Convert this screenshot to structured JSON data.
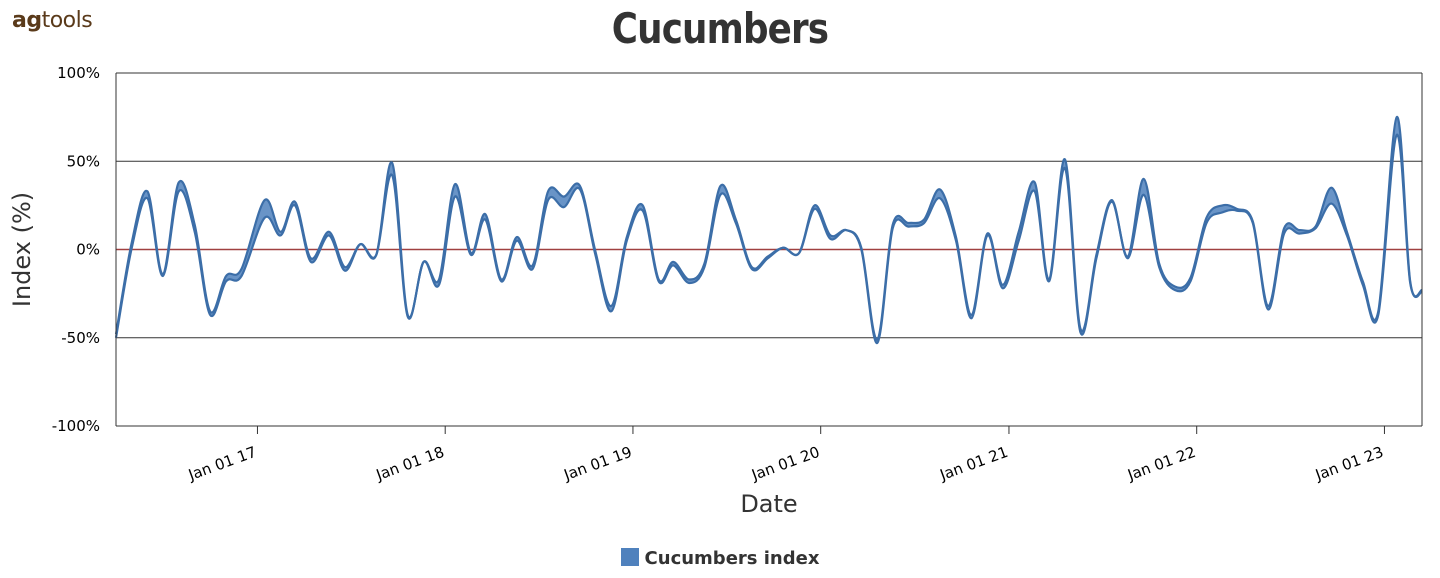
{
  "logo": {
    "prefix": "ag",
    "suffix": "tools"
  },
  "colors": {
    "series": "#4f81bd",
    "series_dark": "#3c6ea8",
    "zero_line": "#a04040",
    "grid": "#333333"
  },
  "chart_data": {
    "type": "area",
    "title": "Cucumbers",
    "xlabel": "Date",
    "ylabel": "Index (%)",
    "ylim": [
      -100,
      100
    ],
    "yticks": [
      100,
      50,
      0,
      -50,
      -100
    ],
    "ytick_labels": [
      "100%",
      "50%",
      "0%",
      "-50%",
      "-100%"
    ],
    "xlim": [
      "2016-04-01",
      "2023-03-15"
    ],
    "xticks": [
      "2017-01-01",
      "2018-01-01",
      "2019-01-01",
      "2020-01-01",
      "2021-01-01",
      "2022-01-01",
      "2023-01-01"
    ],
    "xtick_labels": [
      "Jan 01 17",
      "Jan 01 18",
      "Jan 01 19",
      "Jan 01 20",
      "Jan 01 21",
      "Jan 01 22",
      "Jan 01 23"
    ],
    "grid": true,
    "legend": "bottom-center",
    "series": [
      {
        "name": "Cucumbers index",
        "points": [
          [
            "2016-04-01",
            -50,
            -48
          ],
          [
            "2016-05-01",
            0,
            3
          ],
          [
            "2016-06-01",
            29,
            33
          ],
          [
            "2016-07-01",
            -15,
            -14
          ],
          [
            "2016-08-01",
            33,
            38
          ],
          [
            "2016-09-01",
            10,
            14
          ],
          [
            "2016-10-01",
            -37,
            -35
          ],
          [
            "2016-11-01",
            -18,
            -15
          ],
          [
            "2016-12-01",
            -15,
            -11
          ],
          [
            "2017-01-15",
            18,
            28
          ],
          [
            "2017-02-15",
            8,
            10
          ],
          [
            "2017-03-15",
            25,
            27
          ],
          [
            "2017-04-15",
            -7,
            -5
          ],
          [
            "2017-05-20",
            8,
            10
          ],
          [
            "2017-06-20",
            -12,
            -10
          ],
          [
            "2017-07-20",
            3,
            3
          ],
          [
            "2017-08-20",
            -3,
            -3
          ],
          [
            "2017-09-20",
            42,
            49
          ],
          [
            "2017-10-20",
            -38,
            -37
          ],
          [
            "2017-11-20",
            -7,
            -7
          ],
          [
            "2017-12-20",
            -20,
            -17
          ],
          [
            "2018-01-20",
            30,
            37
          ],
          [
            "2018-02-20",
            -3,
            -2
          ],
          [
            "2018-03-20",
            17,
            20
          ],
          [
            "2018-04-20",
            -18,
            -17
          ],
          [
            "2018-05-20",
            5,
            7
          ],
          [
            "2018-06-20",
            -11,
            -9
          ],
          [
            "2018-07-20",
            28,
            33
          ],
          [
            "2018-08-20",
            24,
            30
          ],
          [
            "2018-09-20",
            34,
            36
          ],
          [
            "2018-10-20",
            -3,
            -1
          ],
          [
            "2018-11-20",
            -35,
            -32
          ],
          [
            "2018-12-20",
            5,
            7
          ],
          [
            "2019-01-20",
            22,
            25
          ],
          [
            "2019-02-20",
            -18,
            -17
          ],
          [
            "2019-03-20",
            -9,
            -7
          ],
          [
            "2019-04-20",
            -19,
            -17
          ],
          [
            "2019-05-20",
            -10,
            -8
          ],
          [
            "2019-06-20",
            31,
            36
          ],
          [
            "2019-07-20",
            15,
            17
          ],
          [
            "2019-08-20",
            -11,
            -10
          ],
          [
            "2019-09-20",
            -5,
            -4
          ],
          [
            "2019-10-20",
            1,
            1
          ],
          [
            "2019-11-20",
            -2,
            -2
          ],
          [
            "2019-12-20",
            23,
            25
          ],
          [
            "2020-01-20",
            6,
            8
          ],
          [
            "2020-02-20",
            11,
            11
          ],
          [
            "2020-03-20",
            0,
            1
          ],
          [
            "2020-04-20",
            -53,
            -51
          ],
          [
            "2020-05-20",
            12,
            14
          ],
          [
            "2020-06-20",
            13,
            15
          ],
          [
            "2020-07-20",
            15,
            17
          ],
          [
            "2020-08-20",
            29,
            34
          ],
          [
            "2020-09-20",
            5,
            7
          ],
          [
            "2020-10-20",
            -39,
            -37
          ],
          [
            "2020-11-20",
            8,
            9
          ],
          [
            "2020-12-20",
            -22,
            -20
          ],
          [
            "2021-01-20",
            5,
            10
          ],
          [
            "2021-02-20",
            33,
            38
          ],
          [
            "2021-03-20",
            -18,
            -17
          ],
          [
            "2021-04-20",
            46,
            51
          ],
          [
            "2021-05-20",
            -47,
            -45
          ],
          [
            "2021-06-20",
            -5,
            -3
          ],
          [
            "2021-07-20",
            27,
            28
          ],
          [
            "2021-08-20",
            -5,
            -4
          ],
          [
            "2021-09-20",
            31,
            40
          ],
          [
            "2021-10-20",
            -10,
            -8
          ],
          [
            "2021-11-20",
            -23,
            -21
          ],
          [
            "2021-12-20",
            -18,
            -16
          ],
          [
            "2022-01-20",
            15,
            18
          ],
          [
            "2022-02-20",
            21,
            25
          ],
          [
            "2022-03-20",
            22,
            23
          ],
          [
            "2022-04-20",
            15,
            16
          ],
          [
            "2022-05-20",
            -34,
            -32
          ],
          [
            "2022-06-20",
            9,
            12
          ],
          [
            "2022-07-20",
            9,
            11
          ],
          [
            "2022-08-20",
            12,
            13
          ],
          [
            "2022-09-20",
            26,
            35
          ],
          [
            "2022-10-20",
            8,
            10
          ],
          [
            "2022-11-20",
            -20,
            -18
          ],
          [
            "2022-12-20",
            -37,
            -35
          ],
          [
            "2023-01-25",
            65,
            75
          ],
          [
            "2023-02-20",
            -19,
            -18
          ],
          [
            "2023-03-15",
            -24,
            -23
          ]
        ]
      }
    ]
  }
}
